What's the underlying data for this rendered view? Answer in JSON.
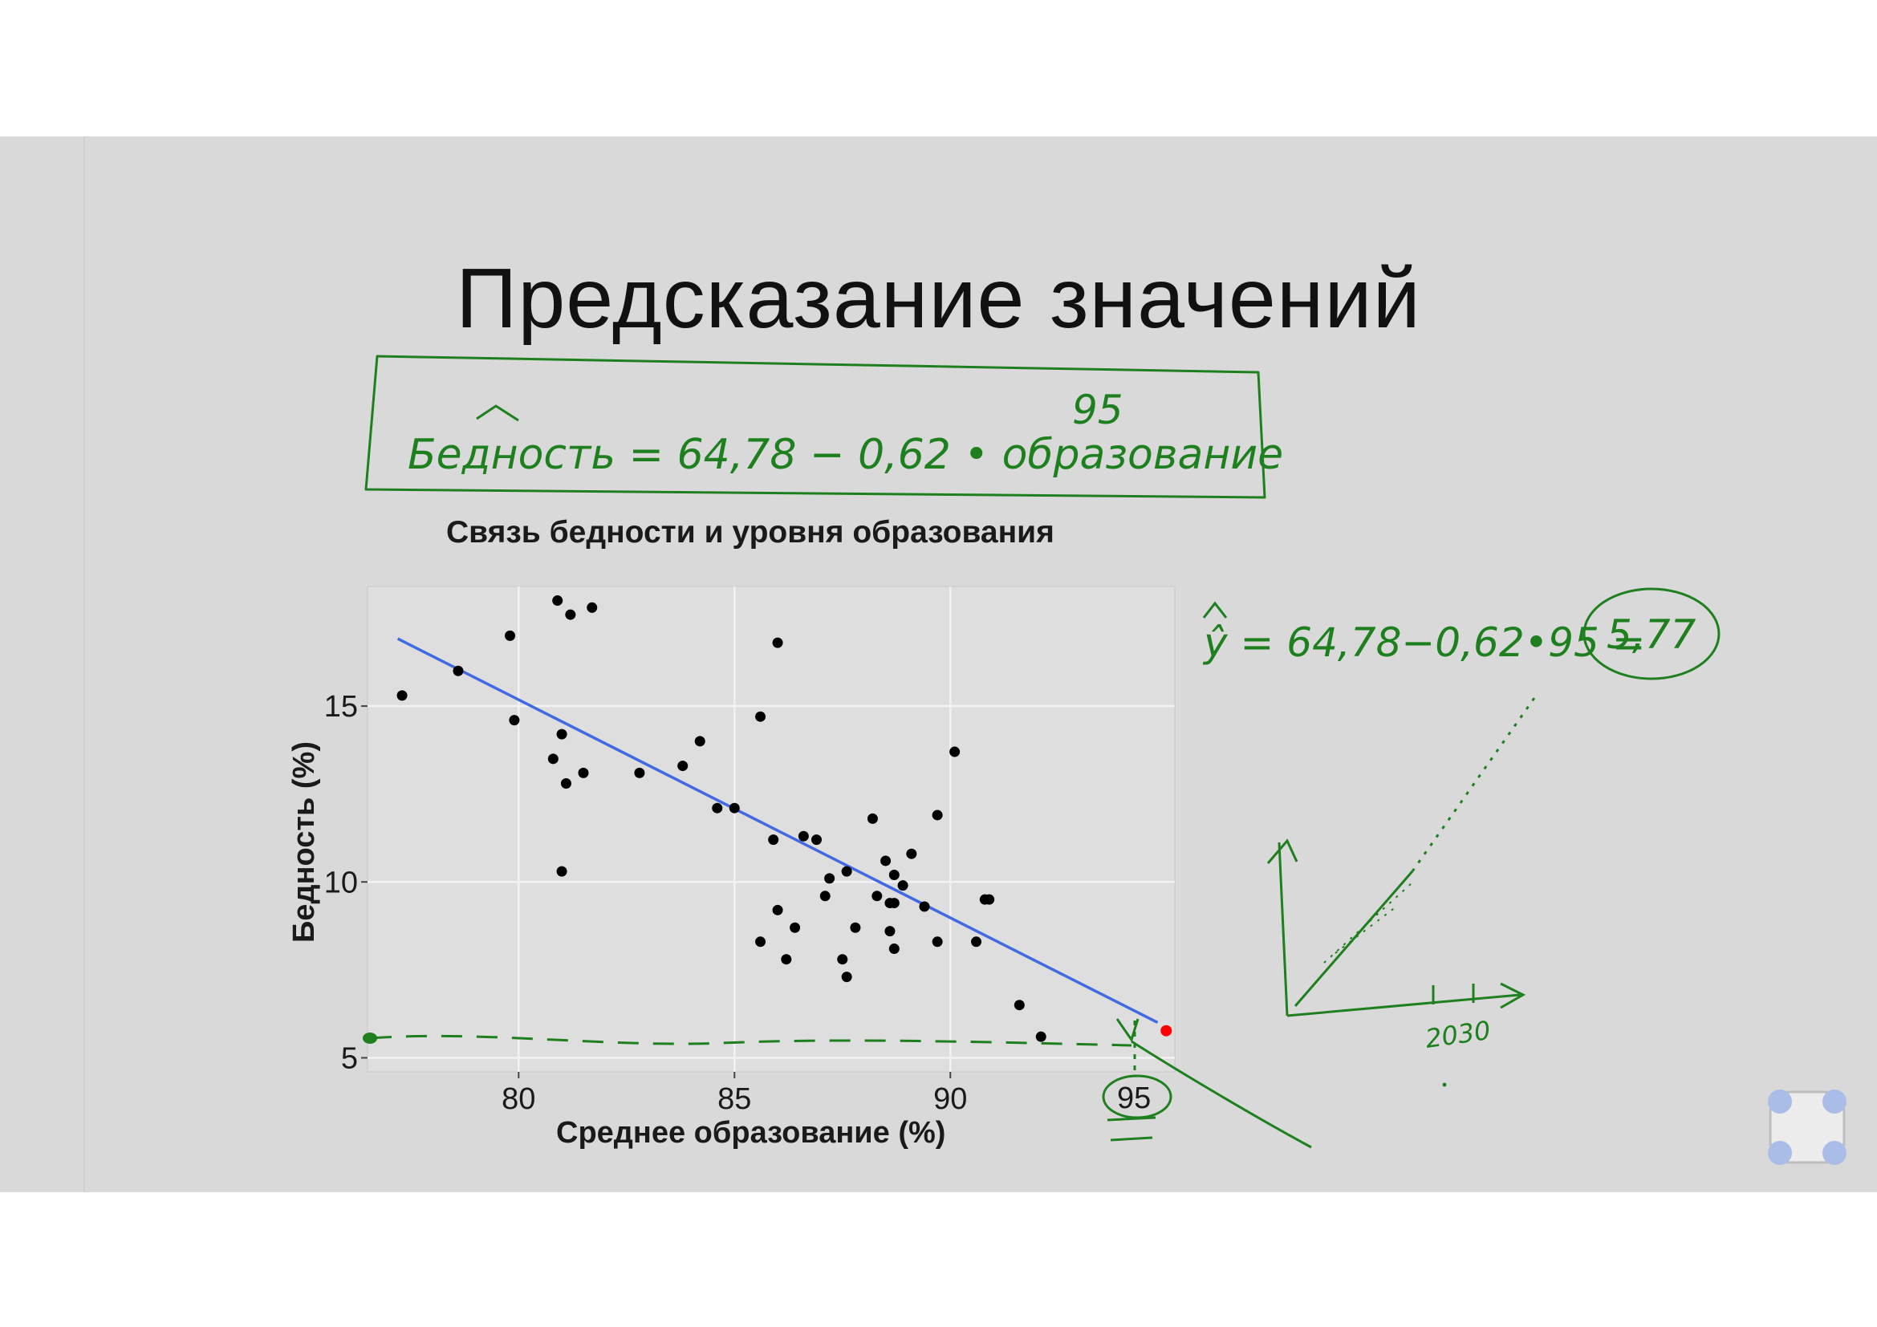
{
  "slide": {
    "title": "Предсказание значений"
  },
  "annotations": {
    "formula_boxed": "Бедность = 64,78 − 0,62 • образование",
    "formula_box_overlay": "95",
    "prediction_line": "ŷ = 64,78−0,62•95 =",
    "prediction_result": "5,77",
    "sketch_axis_label": "2030",
    "x_axis_circled": "95",
    "ink_color": "#1e7f1e"
  },
  "chart_data": {
    "type": "scatter",
    "title": "Связь бедности и уровня образования",
    "xlabel": "Среднее образование (%)",
    "ylabel": "Бедность (%)",
    "xlim": [
      76.5,
      95.2
    ],
    "ylim": [
      4.6,
      18.4
    ],
    "xticks": [
      80,
      85,
      90
    ],
    "yticks": [
      5,
      10,
      15
    ],
    "grid": true,
    "background": "#dedede",
    "point_color": "#000000",
    "points": [
      {
        "x": 77.3,
        "y": 15.3
      },
      {
        "x": 78.6,
        "y": 16.0
      },
      {
        "x": 79.8,
        "y": 17.0
      },
      {
        "x": 79.9,
        "y": 14.6
      },
      {
        "x": 80.8,
        "y": 13.5
      },
      {
        "x": 80.9,
        "y": 18.0
      },
      {
        "x": 81.0,
        "y": 14.2
      },
      {
        "x": 81.0,
        "y": 10.3
      },
      {
        "x": 81.1,
        "y": 12.8
      },
      {
        "x": 81.2,
        "y": 17.6
      },
      {
        "x": 81.5,
        "y": 13.1
      },
      {
        "x": 81.7,
        "y": 17.8
      },
      {
        "x": 82.8,
        "y": 13.1
      },
      {
        "x": 83.8,
        "y": 13.3
      },
      {
        "x": 84.2,
        "y": 14.0
      },
      {
        "x": 84.6,
        "y": 12.1
      },
      {
        "x": 85.0,
        "y": 12.1
      },
      {
        "x": 85.6,
        "y": 14.7
      },
      {
        "x": 85.6,
        "y": 8.3
      },
      {
        "x": 85.9,
        "y": 11.2
      },
      {
        "x": 86.0,
        "y": 16.8
      },
      {
        "x": 86.0,
        "y": 9.2
      },
      {
        "x": 86.2,
        "y": 7.8
      },
      {
        "x": 86.4,
        "y": 8.7
      },
      {
        "x": 86.6,
        "y": 11.3
      },
      {
        "x": 86.9,
        "y": 11.2
      },
      {
        "x": 87.1,
        "y": 9.6
      },
      {
        "x": 87.2,
        "y": 10.1
      },
      {
        "x": 87.5,
        "y": 7.8
      },
      {
        "x": 87.6,
        "y": 7.3
      },
      {
        "x": 87.6,
        "y": 10.3
      },
      {
        "x": 87.8,
        "y": 8.7
      },
      {
        "x": 88.2,
        "y": 11.8
      },
      {
        "x": 88.3,
        "y": 9.6
      },
      {
        "x": 88.5,
        "y": 10.6
      },
      {
        "x": 88.6,
        "y": 9.4
      },
      {
        "x": 88.6,
        "y": 8.6
      },
      {
        "x": 88.7,
        "y": 10.2
      },
      {
        "x": 88.7,
        "y": 9.4
      },
      {
        "x": 88.7,
        "y": 8.1
      },
      {
        "x": 88.9,
        "y": 9.9
      },
      {
        "x": 89.1,
        "y": 10.8
      },
      {
        "x": 89.4,
        "y": 9.3
      },
      {
        "x": 89.7,
        "y": 11.9
      },
      {
        "x": 89.7,
        "y": 8.3
      },
      {
        "x": 90.1,
        "y": 13.7
      },
      {
        "x": 90.6,
        "y": 8.3
      },
      {
        "x": 90.8,
        "y": 9.5
      },
      {
        "x": 90.9,
        "y": 9.5
      },
      {
        "x": 91.6,
        "y": 6.5
      },
      {
        "x": 92.1,
        "y": 5.6
      }
    ],
    "regression": {
      "intercept": 64.78,
      "slope": -0.62,
      "x_from": 77.2,
      "x_to": 94.8,
      "color": "#4169e1"
    },
    "predicted_point": {
      "x": 95,
      "y": 5.77,
      "color": "#ff0000"
    }
  }
}
